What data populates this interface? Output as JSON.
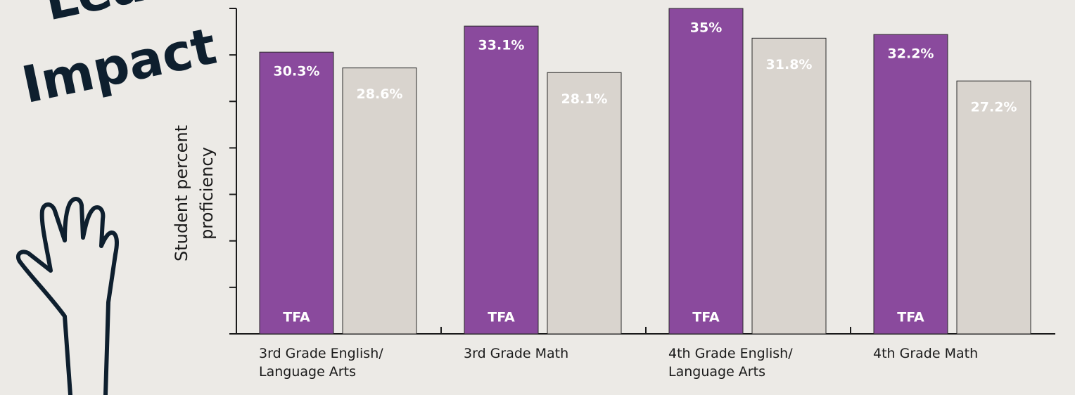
{
  "chart_data": {
    "type": "bar",
    "annotations": [
      "Lea",
      "Impact"
    ],
    "y_label": [
      "Student percent",
      "proficiency"
    ],
    "categories": [
      "3rd Grade English/ Language Arts",
      "3rd Grade Math",
      "4th Grade English/ Language Arts",
      "4th Grade Math"
    ],
    "series": [
      {
        "name": "TFA",
        "color": "#8a4a9d",
        "values": [
          30.3,
          33.1,
          35,
          32.2
        ],
        "value_labels": [
          "30.3%",
          "33.1%",
          "35%",
          "32.2%"
        ]
      },
      {
        "color": "#d9d4ce",
        "values": [
          28.6,
          28.1,
          31.8,
          27.2
        ],
        "value_labels": [
          "28.6%",
          "28.1%",
          "31.8%",
          "27.2%"
        ]
      }
    ],
    "ylim": [
      0,
      35
    ],
    "yticks": [
      0,
      5,
      10,
      15,
      20,
      25,
      30,
      35
    ]
  }
}
